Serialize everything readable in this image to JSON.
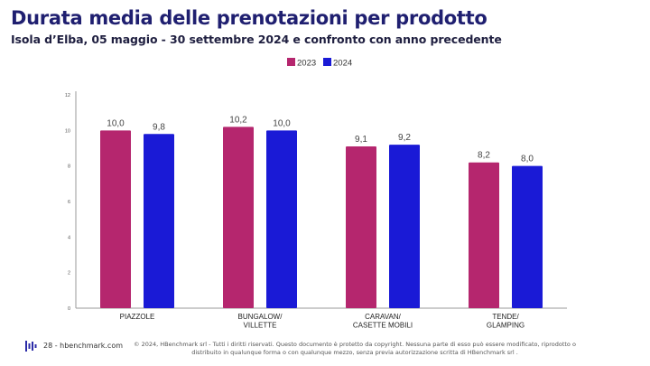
{
  "header": {
    "title": "Durata media delle prenotazioni per prodotto",
    "subtitle": "Isola d’Elba,  05 maggio - 30 settembre 2024 e confronto con anno precedente"
  },
  "chart_data": {
    "type": "bar",
    "categories": [
      [
        "PIAZZOLE"
      ],
      [
        "BUNGALOW/",
        "VILLETTE"
      ],
      [
        "CARAVAN/",
        "CASETTE MOBILI"
      ],
      [
        "TENDE/",
        "GLAMPING"
      ]
    ],
    "series": [
      {
        "name": "2023",
        "values": [
          10.0,
          10.2,
          9.1,
          8.2
        ],
        "labels": [
          "10,0",
          "10,2",
          "9,1",
          "8,2"
        ],
        "color": "#b5266e"
      },
      {
        "name": "2024",
        "values": [
          9.8,
          10.0,
          9.2,
          8.0
        ],
        "labels": [
          "9,8",
          "10,0",
          "9,2",
          "8,0"
        ],
        "color": "#1a1ad6"
      }
    ],
    "ylim": [
      0,
      12
    ],
    "yticks": [
      "0",
      "2",
      "4",
      "6",
      "8",
      "10",
      "12"
    ],
    "grid": false,
    "legend_position": "top-center"
  },
  "footer": {
    "page": "28 - hbenchmark.com",
    "copyright_line1": "© 2024, HBenchmark srl - Tutti i diritti riservati. Questo documento è protetto da copyright. Nessuna parte di esso può essere modificato, riprodotto o",
    "copyright_line2": "distribuito in qualunque forma o con qualunque mezzo, senza previa autorizzazione scritta di HBenchmark srl .",
    "logo_color": "#2c2ca8"
  }
}
